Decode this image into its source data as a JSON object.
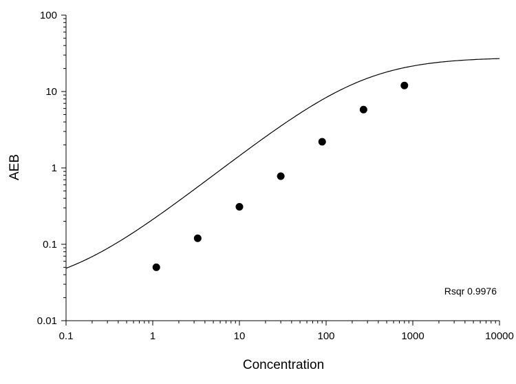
{
  "chart_data": {
    "type": "scatter",
    "xlabel": "Concentration",
    "ylabel": "AEB",
    "x_scale": "log",
    "y_scale": "log",
    "xlim": [
      0.1,
      10000
    ],
    "ylim": [
      0.01,
      100
    ],
    "x_ticks": [
      "0.1",
      "1",
      "10",
      "100",
      "1000",
      "10000"
    ],
    "y_ticks": [
      "0.01",
      "0.1",
      "1",
      "10",
      "100"
    ],
    "grid": false,
    "annotation": "Rsqr 0.9976",
    "points": {
      "x": [
        1.1,
        3.3,
        10,
        30,
        90,
        270,
        800
      ],
      "y": [
        0.05,
        0.12,
        0.31,
        0.78,
        2.2,
        5.8,
        12
      ]
    },
    "fit_curve": {
      "model": "4PL",
      "bottom": 0.025,
      "top": 28,
      "ec50": 260,
      "hill": 0.9
    }
  }
}
